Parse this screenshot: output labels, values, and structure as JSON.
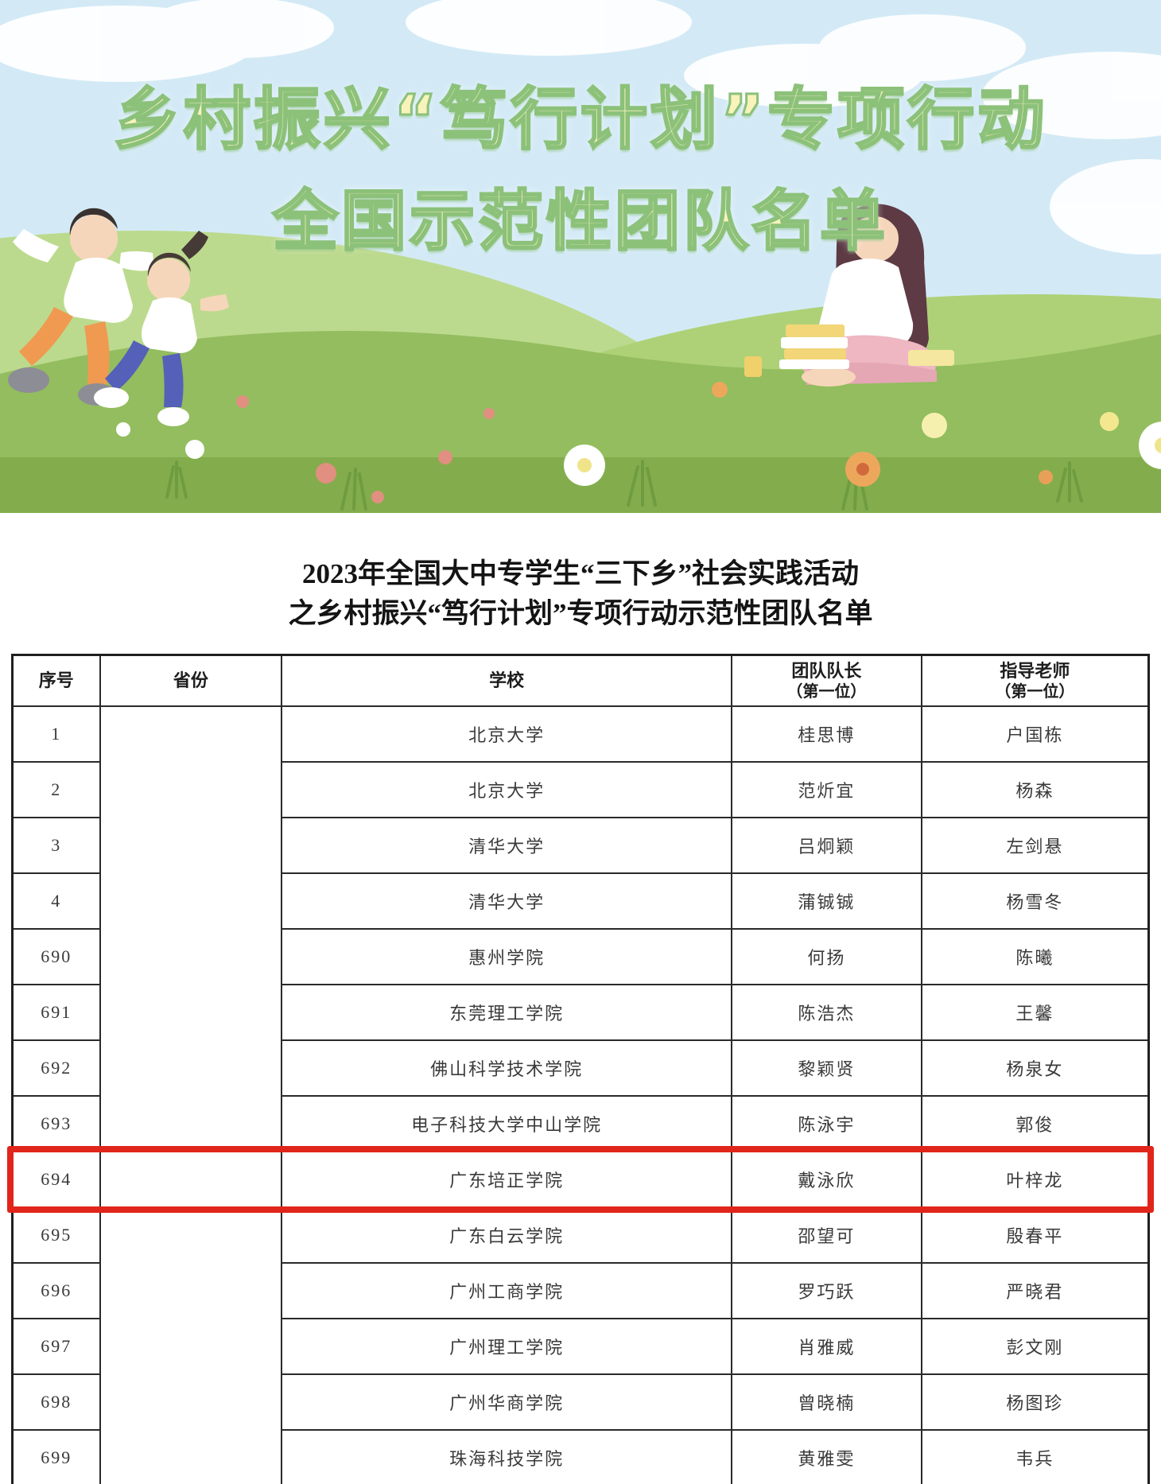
{
  "banner": {
    "title_line1": "乡村振兴“笃行计划”专项行动",
    "title_line2": "全国示范性团队名单",
    "text_color": "#f8f3bb",
    "outline_color": "#8cc17a",
    "sky_color": "#d3eaf6",
    "grass_color": "#8fb958"
  },
  "doc_title": {
    "line1": "2023年全国大中专学生“三下乡”社会实践活动",
    "line2": "之乡村振兴“笃行计划”专项行动示范性团队名单"
  },
  "table": {
    "highlight_color": "#e0251b",
    "columns": [
      {
        "label": "序号",
        "sub": ""
      },
      {
        "label": "省份",
        "sub": ""
      },
      {
        "label": "学校",
        "sub": ""
      },
      {
        "label": "团队队长",
        "sub": "（第一位）"
      },
      {
        "label": "指导老师",
        "sub": "（第一位）"
      }
    ],
    "rows": [
      {
        "no": "1",
        "province": "",
        "school": "北京大学",
        "leader": "桂思博",
        "advisor": "户国栋"
      },
      {
        "no": "2",
        "province": "",
        "school": "北京大学",
        "leader": "范炘宜",
        "advisor": "杨森"
      },
      {
        "no": "3",
        "province": "",
        "school": "清华大学",
        "leader": "吕炯颖",
        "advisor": "左剑悬"
      },
      {
        "no": "4",
        "province": "",
        "school": "清华大学",
        "leader": "蒲铖铖",
        "advisor": "杨雪冬"
      },
      {
        "no": "690",
        "province": "",
        "school": "惠州学院",
        "leader": "何扬",
        "advisor": "陈曦"
      },
      {
        "no": "691",
        "province": "",
        "school": "东莞理工学院",
        "leader": "陈浩杰",
        "advisor": "王馨"
      },
      {
        "no": "692",
        "province": "",
        "school": "佛山科学技术学院",
        "leader": "黎颖贤",
        "advisor": "杨泉女"
      },
      {
        "no": "693",
        "province": "",
        "school": "电子科技大学中山学院",
        "leader": "陈泳宇",
        "advisor": "郭俊"
      },
      {
        "no": "694",
        "province": "",
        "school": "广东培正学院",
        "leader": "戴泳欣",
        "advisor": "叶梓龙"
      },
      {
        "no": "695",
        "province": "",
        "school": "广东白云学院",
        "leader": "邵望可",
        "advisor": "殷春平"
      },
      {
        "no": "696",
        "province": "",
        "school": "广州工商学院",
        "leader": "罗巧跃",
        "advisor": "严晓君"
      },
      {
        "no": "697",
        "province": "",
        "school": "广州理工学院",
        "leader": "肖雅威",
        "advisor": "彭文刚"
      },
      {
        "no": "698",
        "province": "",
        "school": "广州华商学院",
        "leader": "曾晓楠",
        "advisor": "杨图珍"
      },
      {
        "no": "699",
        "province": "",
        "school": "珠海科技学院",
        "leader": "黄雅雯",
        "advisor": "韦兵"
      }
    ]
  }
}
